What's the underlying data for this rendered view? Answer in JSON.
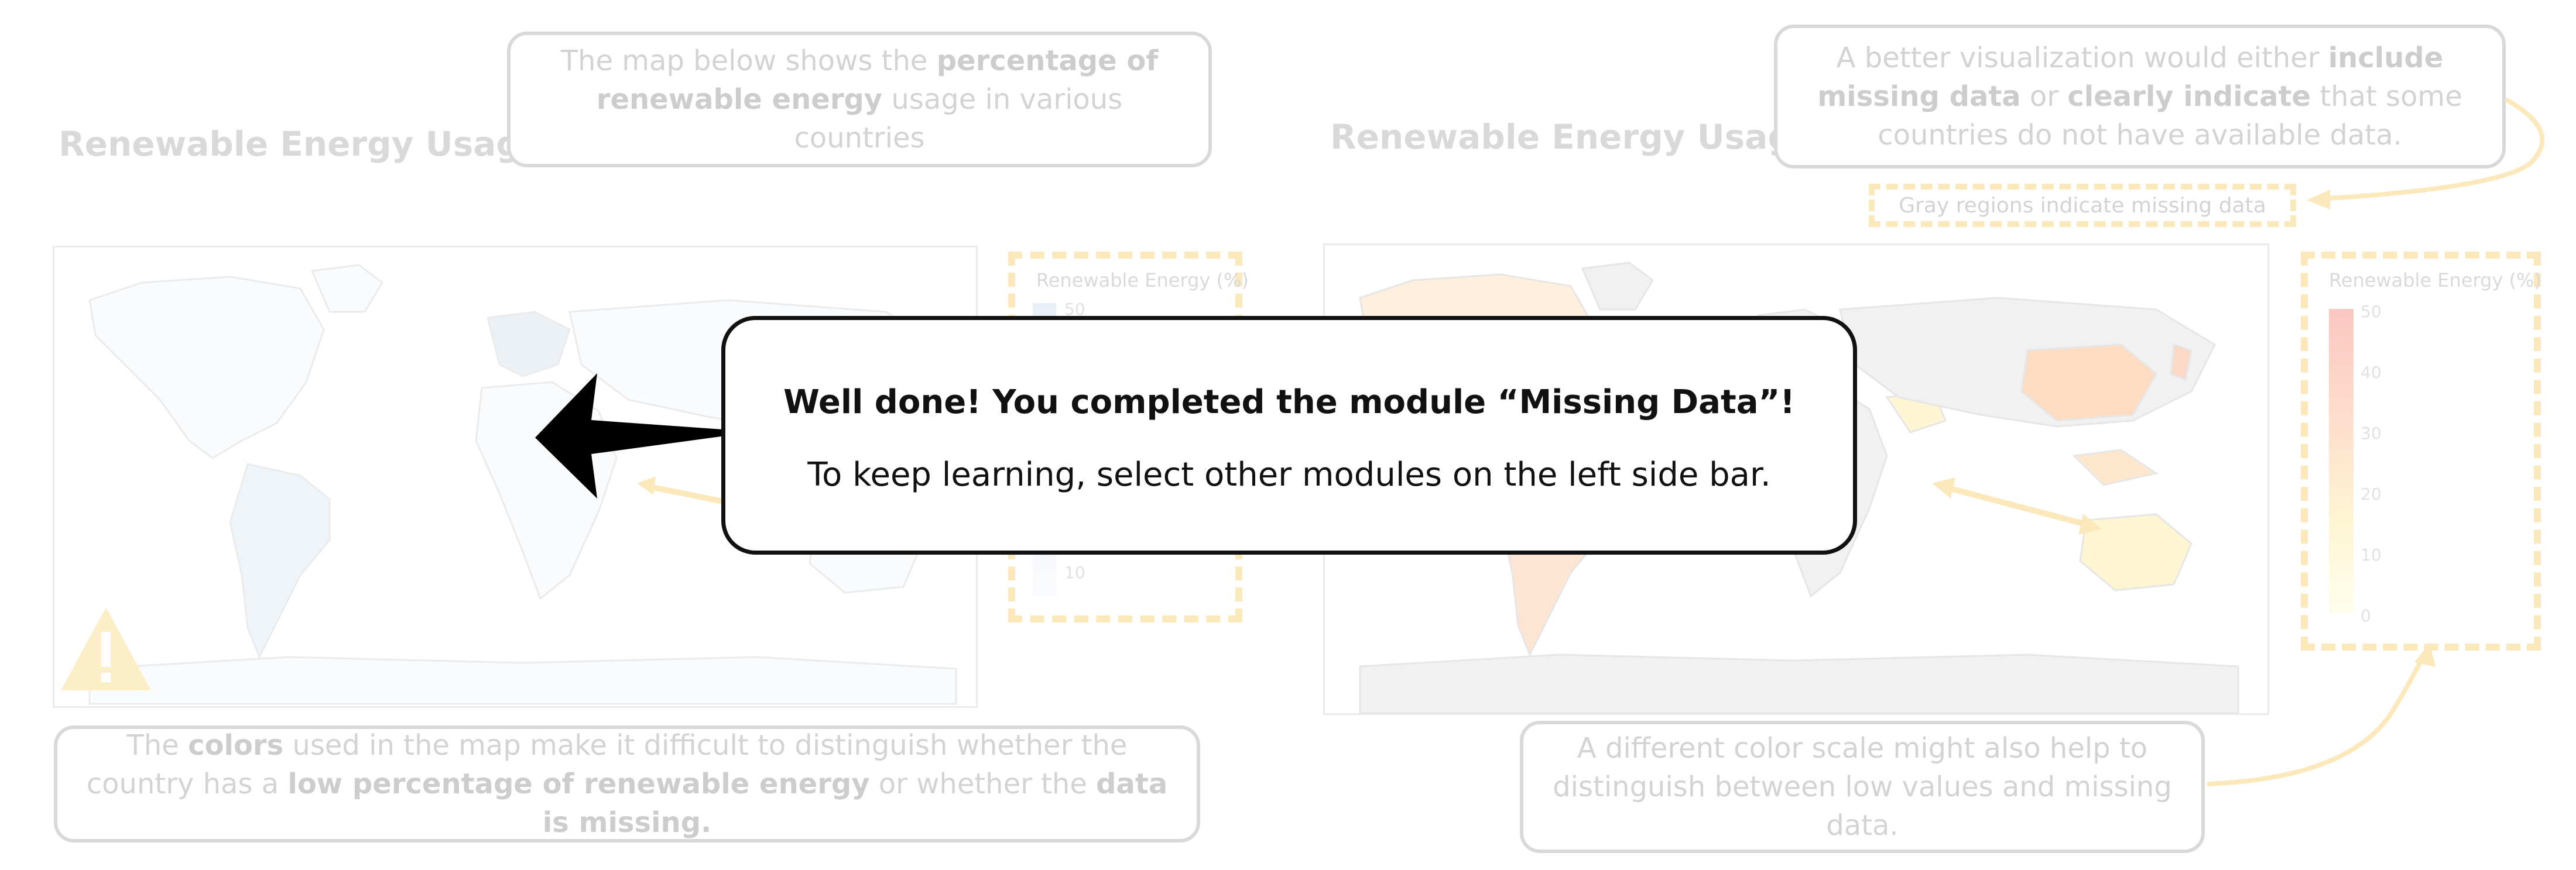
{
  "left_panel": {
    "title": "Renewable Energy Usage",
    "top_callout": {
      "parts": [
        "The map below shows the ",
        "percentage of renewable energy",
        " usage in various countries"
      ]
    },
    "bottom_callout": {
      "parts": [
        "The ",
        "colors",
        " used in the map make it difficult to distinguish whether the country has a ",
        "low percentage of renewable energy",
        " or whether the ",
        "data is missing."
      ]
    },
    "legend": {
      "title": "Renewable Energy (%)",
      "ticks": [
        "50",
        "10"
      ],
      "colors": [
        "#3b6fb0",
        "#eaf1f8"
      ]
    },
    "warning_icon": "warning-triangle-icon"
  },
  "right_panel": {
    "title": "Renewable Energy Usage",
    "top_callout": {
      "parts": [
        "A better visualization would either ",
        "include missing data",
        " or ",
        "clearly indicate",
        " that some countries do not have available data."
      ]
    },
    "gray_note": "Gray regions indicate missing data",
    "bottom_callout": {
      "text": "A different color scale might also help to distinguish between low values and missing data."
    },
    "legend": {
      "title": "Renewable Energy (%)",
      "ticks": [
        "50",
        "40",
        "30",
        "20",
        "10",
        "0"
      ],
      "colors": [
        "#f46a5a",
        "#fde48a",
        "#fffbd0"
      ]
    }
  },
  "modal": {
    "heading": "Well done! You completed the module “Missing Data”!",
    "body": "To keep learning, select other modules on the left side bar."
  },
  "colors": {
    "missing_gray": "#d9d9d9",
    "dash_yellow": "#f7c54a",
    "arrow_black": "#000000"
  }
}
